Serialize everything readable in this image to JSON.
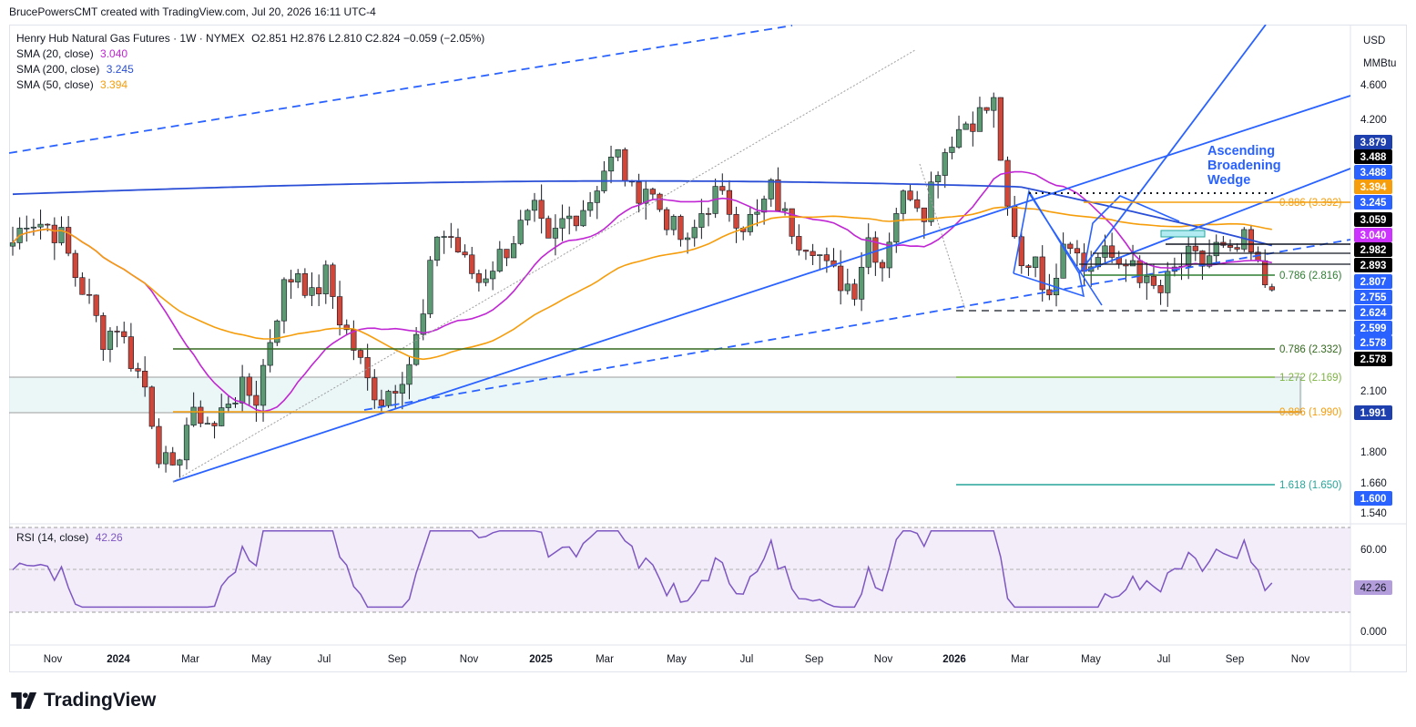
{
  "header": {
    "credit": "BrucePowersCMT created with TradingView.com, Jul 20, 2026 16:11 UTC-4"
  },
  "legend": {
    "symbol": "Henry Hub Natural Gas Futures · 1W · NYMEX",
    "ohlc": "O2.851  H2.876  L2.810  C2.824  −0.059 (−2.05%)",
    "sma20_label": "SMA (20, close)",
    "sma20_value": "3.040",
    "sma200_label": "SMA (200, close)",
    "sma200_value": "3.245",
    "sma50_label": "SMA (50, close)",
    "sma50_value": "3.394"
  },
  "rsi_legend": {
    "label": "RSI (14, close)",
    "value": "42.26"
  },
  "axis": {
    "currency": "USD",
    "unit": "MMBtu"
  },
  "footer": {
    "brand": "TradingView"
  },
  "chart_data": {
    "type": "candlestick",
    "timeframe": "1W",
    "x_labels": [
      "Nov",
      "2024",
      "Mar",
      "May",
      "Jul",
      "Sep",
      "Nov",
      "2025",
      "Mar",
      "May",
      "Jul",
      "Sep",
      "Nov",
      "2026",
      "Mar",
      "May",
      "Jul",
      "Sep",
      "Nov"
    ],
    "y_scale": "log",
    "y_ticks": [
      "4.600",
      "4.200",
      "2.100",
      "1.800",
      "1.660",
      "1.540"
    ],
    "price_labels": [
      {
        "text": "3.879",
        "color": "#1e3fae"
      },
      {
        "text": "3.488",
        "color": "#000000"
      },
      {
        "text": "3.488",
        "color": "#2962ff"
      },
      {
        "text": "3.394",
        "color": "#f59d0b"
      },
      {
        "text": "3.245",
        "color": "#2962ff"
      },
      {
        "text": "3.059",
        "color": "#000000"
      },
      {
        "text": "3.040",
        "color": "#cc33ff"
      },
      {
        "text": "2.982",
        "color": "#000000"
      },
      {
        "text": "2.893",
        "color": "#000000"
      },
      {
        "text": "2.807",
        "color": "#2962ff"
      },
      {
        "text": "2.755",
        "color": "#2962ff"
      },
      {
        "text": "2.624",
        "color": "#2962ff"
      },
      {
        "text": "2.599",
        "color": "#2962ff"
      },
      {
        "text": "2.578",
        "color": "#2962ff"
      },
      {
        "text": "2.578",
        "color": "#000000"
      },
      {
        "text": "1.991",
        "color": "#1e3fae"
      },
      {
        "text": "1.600",
        "color": "#2962ff"
      }
    ],
    "fib_levels": [
      {
        "text": "0.886 (3.392)",
        "value": 3.392,
        "color": "#f59d0b"
      },
      {
        "text": "0.786 (2.816)",
        "value": 2.816,
        "color": "#2e7d32"
      },
      {
        "text": "0.786 (2.332)",
        "value": 2.332,
        "color": "#33691e"
      },
      {
        "text": "1.272 (2.169)",
        "value": 2.169,
        "color": "#7cb342"
      },
      {
        "text": "0.886 (1.990)",
        "value": 1.99,
        "color": "#f59d0b"
      },
      {
        "text": "1.618 (1.650)",
        "value": 1.65,
        "color": "#26a69a"
      }
    ],
    "annotation": "Ascending\nBroadening\nWedge",
    "rsi": {
      "ticks": [
        "60.00",
        "0.000"
      ],
      "current": 42.26
    },
    "colors": {
      "up": "#5b9a72",
      "down": "#d0473a",
      "sma20": "#c026d3",
      "sma50": "#f59d0b",
      "sma200": "#2a4fd6",
      "trend": "#2962ff",
      "rsi": "#7e57c2"
    }
  }
}
